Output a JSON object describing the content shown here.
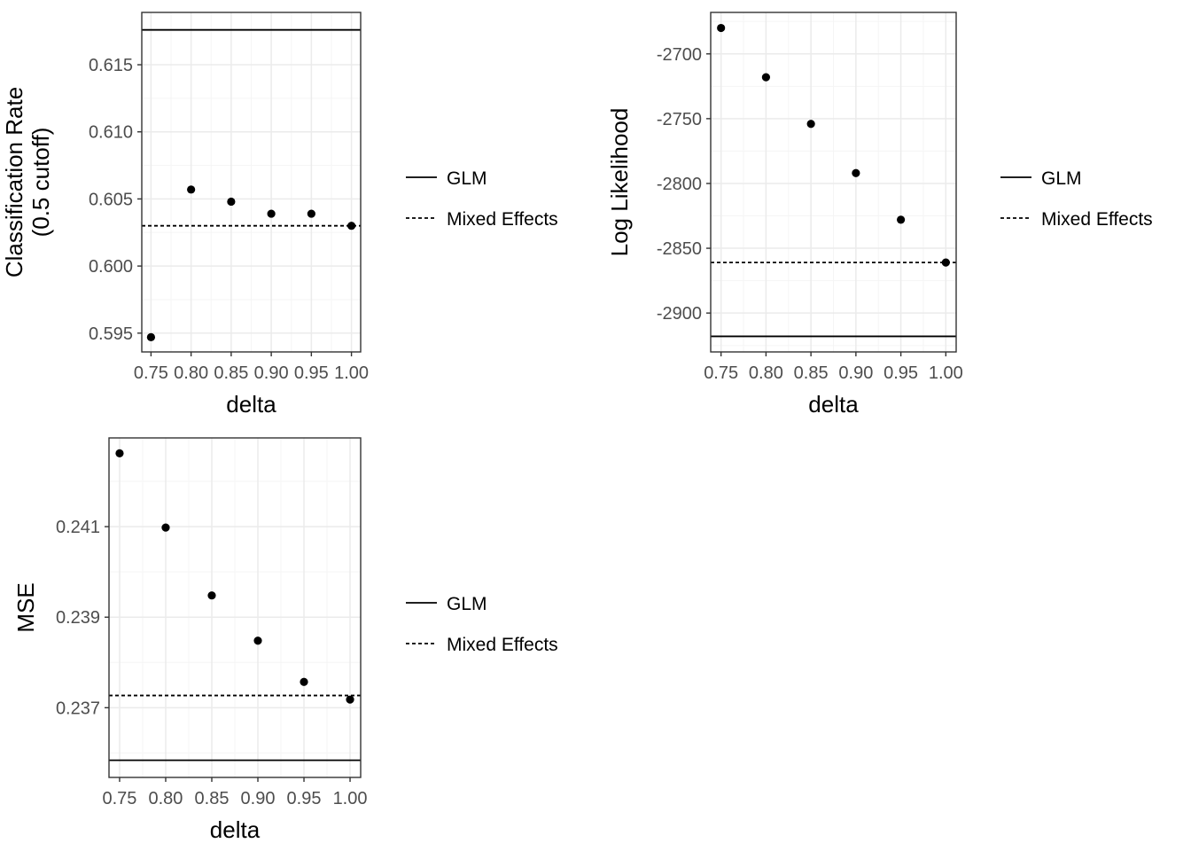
{
  "chart_data": [
    {
      "type": "scatter",
      "title": "",
      "xlabel": "delta",
      "ylabel_lines": [
        "Classification Rate",
        "(0.5 cutoff)"
      ],
      "x": [
        0.75,
        0.8,
        0.85,
        0.9,
        0.95,
        1.0
      ],
      "y": [
        0.5947,
        0.6057,
        0.6048,
        0.6039,
        0.6039,
        0.603
      ],
      "xlim": [
        0.7385,
        1.0115
      ],
      "ylim": [
        0.5936,
        0.6189
      ],
      "x_ticks": [
        0.75,
        0.8,
        0.85,
        0.9,
        0.95,
        1.0
      ],
      "x_tick_labels": [
        "0.75",
        "0.80",
        "0.85",
        "0.90",
        "0.95",
        "1.00"
      ],
      "y_ticks": [
        0.595,
        0.6,
        0.605,
        0.61,
        0.615
      ],
      "y_tick_labels": [
        "0.595",
        "0.600",
        "0.605",
        "0.610",
        "0.615"
      ],
      "reference_lines": [
        {
          "name": "GLM",
          "style": "solid",
          "y": 0.6176
        },
        {
          "name": "Mixed Effects",
          "style": "dashed",
          "y": 0.603
        }
      ],
      "grid": true,
      "legend_position": "right"
    },
    {
      "type": "scatter",
      "title": "",
      "xlabel": "delta",
      "ylabel_lines": [
        "Log Likelihood"
      ],
      "x": [
        0.75,
        0.8,
        0.85,
        0.9,
        0.95,
        1.0
      ],
      "y": [
        -2680,
        -2718,
        -2754,
        -2792,
        -2828,
        -2861
      ],
      "xlim": [
        0.7385,
        1.0115
      ],
      "ylim": [
        -2930,
        -2668
      ],
      "x_ticks": [
        0.75,
        0.8,
        0.85,
        0.9,
        0.95,
        1.0
      ],
      "x_tick_labels": [
        "0.75",
        "0.80",
        "0.85",
        "0.90",
        "0.95",
        "1.00"
      ],
      "y_ticks": [
        -2900,
        -2850,
        -2800,
        -2750,
        -2700
      ],
      "y_tick_labels": [
        "-2900",
        "-2850",
        "-2800",
        "-2750",
        "-2700"
      ],
      "reference_lines": [
        {
          "name": "GLM",
          "style": "solid",
          "y": -2918
        },
        {
          "name": "Mixed Effects",
          "style": "dashed",
          "y": -2861
        }
      ],
      "grid": true,
      "legend_position": "right"
    },
    {
      "type": "scatter",
      "title": "",
      "xlabel": "delta",
      "ylabel_lines": [
        "MSE"
      ],
      "x": [
        0.75,
        0.8,
        0.85,
        0.9,
        0.95,
        1.0
      ],
      "y": [
        0.24262,
        0.24098,
        0.23948,
        0.23848,
        0.23757,
        0.23718
      ],
      "xlim": [
        0.7385,
        1.0115
      ],
      "ylim": [
        0.23546,
        0.24296
      ],
      "x_ticks": [
        0.75,
        0.8,
        0.85,
        0.9,
        0.95,
        1.0
      ],
      "x_tick_labels": [
        "0.75",
        "0.80",
        "0.85",
        "0.90",
        "0.95",
        "1.00"
      ],
      "y_ticks": [
        0.237,
        0.239,
        0.241
      ],
      "y_tick_labels": [
        "0.237",
        "0.239",
        "0.241"
      ],
      "reference_lines": [
        {
          "name": "GLM",
          "style": "solid",
          "y": 0.23584
        },
        {
          "name": "Mixed Effects",
          "style": "dashed",
          "y": 0.23727
        }
      ],
      "grid": true,
      "legend_position": "right"
    }
  ],
  "legend_entries": [
    {
      "label": "GLM",
      "style": "solid"
    },
    {
      "label": "Mixed Effects",
      "style": "dashed"
    }
  ],
  "colors": {
    "points": "#000000",
    "lines": "#000000",
    "grid_major": "#ebebeb",
    "grid_minor": "#f5f5f5",
    "panel_border": "#333333",
    "tick_text": "#4d4d4d",
    "background": "#ffffff"
  }
}
